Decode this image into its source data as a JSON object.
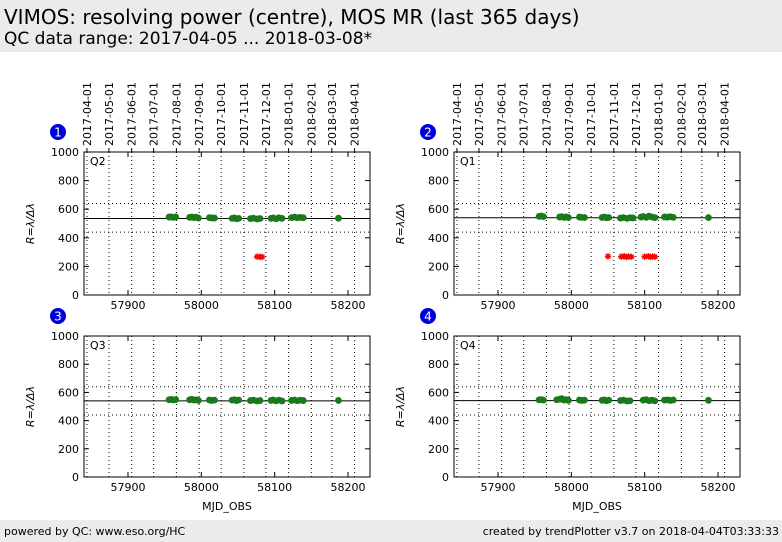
{
  "header": {
    "title": "VIMOS: resolving power (centre), MOS MR (last 365 days)",
    "subtitle": "QC data range: 2017-04-05 ... 2018-03-08*"
  },
  "footer": {
    "left": "powered by QC: www.eso.org/HC",
    "right": "created by trendPlotter v3.7 on 2018-04-04T03:33:33"
  },
  "colors": {
    "good": "#1a7a1a",
    "outlier": "#ff0000",
    "badge": "#0000dd"
  },
  "chart_data": [
    {
      "type": "scatter",
      "panel_number": "1",
      "label": "Q2",
      "ylabel": "R=λ/Δλ",
      "xlabel": "",
      "xlim": [
        57840,
        58230
      ],
      "ylim": [
        0,
        1000
      ],
      "x_ticks": [
        57900,
        58000,
        58100,
        58200
      ],
      "y_ticks": [
        0,
        200,
        400,
        600,
        800,
        1000
      ],
      "top_axis_dates": [
        "2017-04-01",
        "2017-05-01",
        "2017-06-01",
        "2017-07-01",
        "2017-08-01",
        "2017-09-01",
        "2017-10-01",
        "2017-11-01",
        "2017-12-01",
        "2018-01-01",
        "2018-02-01",
        "2018-03-01",
        "2018-04-01"
      ],
      "reference_line": 535,
      "limit_lines": [
        440,
        640
      ],
      "series": [
        {
          "values": [
            [
              57956,
              545
            ],
            [
              57959,
              546
            ],
            [
              57962,
              543
            ],
            [
              57965,
              546
            ],
            [
              57984,
              543
            ],
            [
              57987,
              545
            ],
            [
              57990,
              541
            ],
            [
              57993,
              544
            ],
            [
              57996,
              538
            ],
            [
              58011,
              541
            ],
            [
              58014,
              539
            ],
            [
              58018,
              538
            ],
            [
              58042,
              536
            ],
            [
              58045,
              539
            ],
            [
              58048,
              533
            ],
            [
              58051,
              536
            ],
            [
              58067,
              534
            ],
            [
              58071,
              537
            ],
            [
              58076,
              532
            ],
            [
              58080,
              535
            ],
            [
              58095,
              536
            ],
            [
              58098,
              539
            ],
            [
              58102,
              533
            ],
            [
              58106,
              540
            ],
            [
              58110,
              536
            ],
            [
              58123,
              541
            ],
            [
              58127,
              544
            ],
            [
              58131,
              540
            ],
            [
              58135,
              543
            ],
            [
              58139,
              540
            ],
            [
              58187,
              537
            ]
          ]
        },
        {
          "values": [
            [
              58076,
              268
            ],
            [
              58080,
              267
            ],
            [
              58083,
              266
            ]
          ]
        }
      ]
    },
    {
      "type": "scatter",
      "panel_number": "2",
      "label": "Q1",
      "ylabel": "R=λ/Δλ",
      "xlabel": "",
      "xlim": [
        57840,
        58230
      ],
      "ylim": [
        0,
        1000
      ],
      "x_ticks": [
        57900,
        58000,
        58100,
        58200
      ],
      "y_ticks": [
        0,
        200,
        400,
        600,
        800,
        1000
      ],
      "top_axis_dates": [
        "2017-04-01",
        "2017-05-01",
        "2017-06-01",
        "2017-07-01",
        "2017-08-01",
        "2017-09-01",
        "2017-10-01",
        "2017-11-01",
        "2017-12-01",
        "2018-01-01",
        "2018-02-01",
        "2018-03-01",
        "2018-04-01"
      ],
      "reference_line": 540,
      "limit_lines": [
        440,
        640
      ],
      "series": [
        {
          "values": [
            [
              57956,
              550
            ],
            [
              57959,
              552
            ],
            [
              57962,
              548
            ],
            [
              57984,
              545
            ],
            [
              57987,
              548
            ],
            [
              57990,
              542
            ],
            [
              57993,
              546
            ],
            [
              57996,
              542
            ],
            [
              58011,
              545
            ],
            [
              58014,
              543
            ],
            [
              58018,
              542
            ],
            [
              58042,
              542
            ],
            [
              58045,
              545
            ],
            [
              58048,
              540
            ],
            [
              58051,
              542
            ],
            [
              58067,
              538
            ],
            [
              58071,
              541
            ],
            [
              58076,
              536
            ],
            [
              58080,
              540
            ],
            [
              58084,
              539
            ],
            [
              58095,
              545
            ],
            [
              58098,
              549
            ],
            [
              58102,
              543
            ],
            [
              58106,
              551
            ],
            [
              58110,
              545
            ],
            [
              58114,
              541
            ],
            [
              58127,
              546
            ],
            [
              58131,
              544
            ],
            [
              58135,
              547
            ],
            [
              58139,
              543
            ],
            [
              58187,
              541
            ]
          ]
        },
        {
          "values": [
            [
              58050,
              270
            ],
            [
              58068,
              268
            ],
            [
              58072,
              271
            ],
            [
              58075,
              266
            ],
            [
              58078,
              269
            ],
            [
              58082,
              267
            ],
            [
              58100,
              268
            ],
            [
              58105,
              271
            ],
            [
              58108,
              266
            ],
            [
              58111,
              269
            ],
            [
              58114,
              267
            ]
          ]
        }
      ]
    },
    {
      "type": "scatter",
      "panel_number": "3",
      "label": "Q3",
      "ylabel": "R=λ/Δλ",
      "xlabel": "MJD_OBS",
      "xlim": [
        57840,
        58230
      ],
      "ylim": [
        0,
        1000
      ],
      "x_ticks": [
        57900,
        58000,
        58100,
        58200
      ],
      "y_ticks": [
        0,
        200,
        400,
        600,
        800,
        1000
      ],
      "reference_line": 540,
      "limit_lines": [
        440,
        640
      ],
      "series": [
        {
          "values": [
            [
              57956,
              548
            ],
            [
              57959,
              550
            ],
            [
              57962,
              546
            ],
            [
              57965,
              549
            ],
            [
              57984,
              548
            ],
            [
              57987,
              551
            ],
            [
              57990,
              545
            ],
            [
              57993,
              548
            ],
            [
              57996,
              543
            ],
            [
              58011,
              546
            ],
            [
              58014,
              543
            ],
            [
              58018,
              545
            ],
            [
              58042,
              545
            ],
            [
              58045,
              548
            ],
            [
              58048,
              542
            ],
            [
              58051,
              546
            ],
            [
              58067,
              542
            ],
            [
              58071,
              545
            ],
            [
              58076,
              539
            ],
            [
              58080,
              542
            ],
            [
              58095,
              543
            ],
            [
              58098,
              546
            ],
            [
              58102,
              540
            ],
            [
              58106,
              545
            ],
            [
              58110,
              539
            ],
            [
              58123,
              543
            ],
            [
              58127,
              546
            ],
            [
              58131,
              541
            ],
            [
              58135,
              545
            ],
            [
              58139,
              542
            ],
            [
              58187,
              543
            ]
          ]
        }
      ]
    },
    {
      "type": "scatter",
      "panel_number": "4",
      "label": "Q4",
      "ylabel": "R=λ/Δλ",
      "xlabel": "MJD_OBS",
      "xlim": [
        57840,
        58230
      ],
      "ylim": [
        0,
        1000
      ],
      "x_ticks": [
        57900,
        58000,
        58100,
        58200
      ],
      "y_ticks": [
        0,
        200,
        400,
        600,
        800,
        1000
      ],
      "reference_line": 542,
      "limit_lines": [
        440,
        640
      ],
      "series": [
        {
          "values": [
            [
              57956,
              547
            ],
            [
              57959,
              549
            ],
            [
              57962,
              545
            ],
            [
              57980,
              548
            ],
            [
              57984,
              552
            ],
            [
              57987,
              556
            ],
            [
              57990,
              545
            ],
            [
              57993,
              549
            ],
            [
              57996,
              544
            ],
            [
              58011,
              546
            ],
            [
              58014,
              543
            ],
            [
              58018,
              545
            ],
            [
              58042,
              544
            ],
            [
              58045,
              547
            ],
            [
              58048,
              541
            ],
            [
              58051,
              545
            ],
            [
              58067,
              542
            ],
            [
              58071,
              545
            ],
            [
              58076,
              539
            ],
            [
              58080,
              541
            ],
            [
              58098,
              545
            ],
            [
              58102,
              549
            ],
            [
              58106,
              541
            ],
            [
              58110,
              545
            ],
            [
              58114,
              540
            ],
            [
              58127,
              545
            ],
            [
              58131,
              547
            ],
            [
              58135,
              543
            ],
            [
              58139,
              546
            ],
            [
              58187,
              544
            ]
          ]
        }
      ]
    }
  ]
}
